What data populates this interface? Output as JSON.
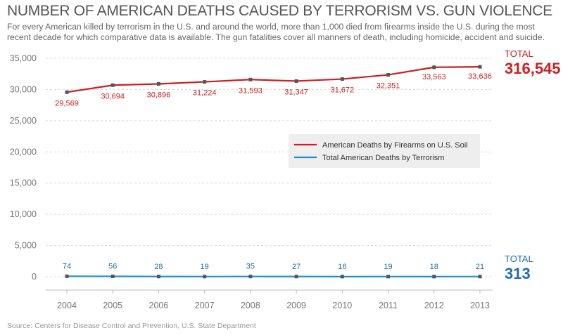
{
  "header": {
    "title": "NUMBER OF AMERICAN DEATHS CAUSED BY TERRORISM VS. GUN VIOLENCE",
    "subtitle": "For every American killed by terrorism in the U.S. and around the world, more than 1,000 died from firearms inside the U.S. during the most recent decade for which comparative data is available. The gun fatalities cover all manners of death, including homicide, accident and suicide."
  },
  "totals": {
    "firearms": {
      "label": "TOTAL",
      "value": "316,545"
    },
    "terrorism": {
      "label": "TOTAL",
      "value": "313"
    }
  },
  "source": "Source: Centers for Disease Control and Prevention, U.S. State Department",
  "colors": {
    "firearms": "#cc1f1f",
    "terrorism": "#1f8fd0",
    "terrorism_text": "#1f6fa8",
    "grid": "#d8d8d8",
    "legend_bg": "#eeeeee"
  },
  "chart_data": {
    "type": "line",
    "x": [
      "2004",
      "2005",
      "2006",
      "2007",
      "2008",
      "2009",
      "2010",
      "2011",
      "2012",
      "2013"
    ],
    "ylim": [
      0,
      35000
    ],
    "yticks": [
      0,
      5000,
      10000,
      15000,
      20000,
      25000,
      30000,
      35000
    ],
    "ytick_labels": [
      "0",
      "5,000",
      "10,000",
      "15,000",
      "20,000",
      "25,000",
      "30,000",
      "35,000"
    ],
    "grid": "horizontal dashed",
    "legend_placement": "center-right",
    "series": [
      {
        "name": "American Deaths by Firearms on U.S. Soil",
        "values": [
          29569,
          30694,
          30896,
          31224,
          31593,
          31347,
          31672,
          32351,
          33563,
          33636
        ],
        "labels": [
          "29,569",
          "30,694",
          "30,896",
          "31,224",
          "31,593",
          "31,347",
          "31,672",
          "32,351",
          "33,563",
          "33,636"
        ]
      },
      {
        "name": "Total American Deaths by Terrorism",
        "values": [
          74,
          56,
          28,
          19,
          35,
          27,
          16,
          19,
          18,
          21
        ],
        "labels": [
          "74",
          "56",
          "28",
          "19",
          "35",
          "27",
          "16",
          "19",
          "18",
          "21"
        ]
      }
    ]
  }
}
